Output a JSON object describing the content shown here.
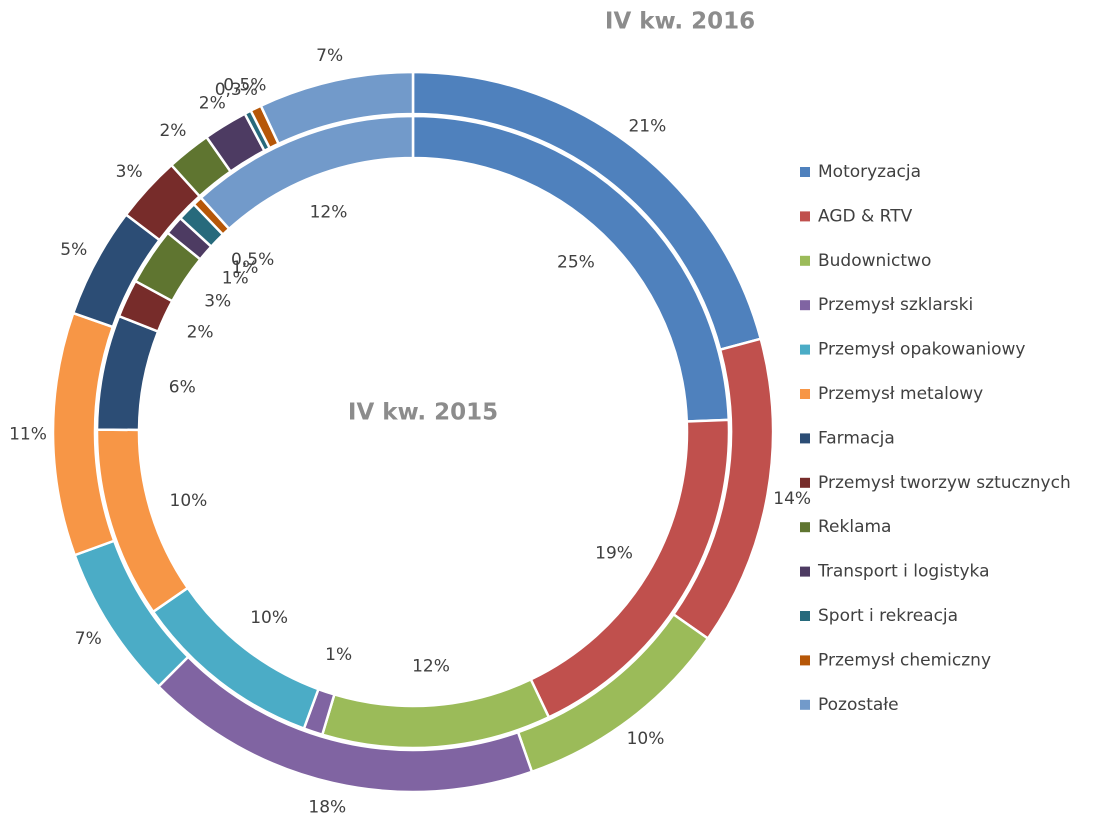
{
  "chart_data": {
    "type": "donut",
    "categories": [
      "Motoryzacja",
      "AGD & RTV",
      "Budownictwo",
      "Przemysł szklarski",
      "Przemysł opakowaniowy",
      "Przemysł metalowy",
      "Farmacja",
      "Przemysł tworzyw sztucznych",
      "Reklama",
      "Transport i logistyka",
      "Sport i rekreacja",
      "Przemysł chemiczny",
      "Pozostałe"
    ],
    "colors": [
      "#4f81bd",
      "#c0504d",
      "#9bbb59",
      "#8064a2",
      "#4bacc6",
      "#f79646",
      "#2c4d75",
      "#772c2a",
      "#5f7530",
      "#4d3b62",
      "#276a7c",
      "#b65708",
      "#729aca"
    ],
    "series": [
      {
        "name": "IV kw. 2016",
        "values": [
          21,
          14,
          10,
          18,
          7,
          11,
          5,
          3,
          2,
          2,
          0.3,
          0.5,
          7
        ],
        "value_labels": [
          "21%",
          "14%",
          "10%",
          "18%",
          "7%",
          "11%",
          "5%",
          "3%",
          "2%",
          "2%",
          "0,3%",
          "0,5%",
          "7%"
        ]
      },
      {
        "name": "IV kw. 2015",
        "values": [
          25,
          19,
          12,
          1,
          10,
          10,
          6,
          2,
          3,
          1,
          1,
          0.5,
          12
        ],
        "value_labels": [
          "25%",
          "19%",
          "12%",
          "1%",
          "10%",
          "10%",
          "6%",
          "2%",
          "3%",
          "1%",
          "1%",
          "0,5%",
          "12%"
        ]
      }
    ],
    "legend": "right"
  }
}
